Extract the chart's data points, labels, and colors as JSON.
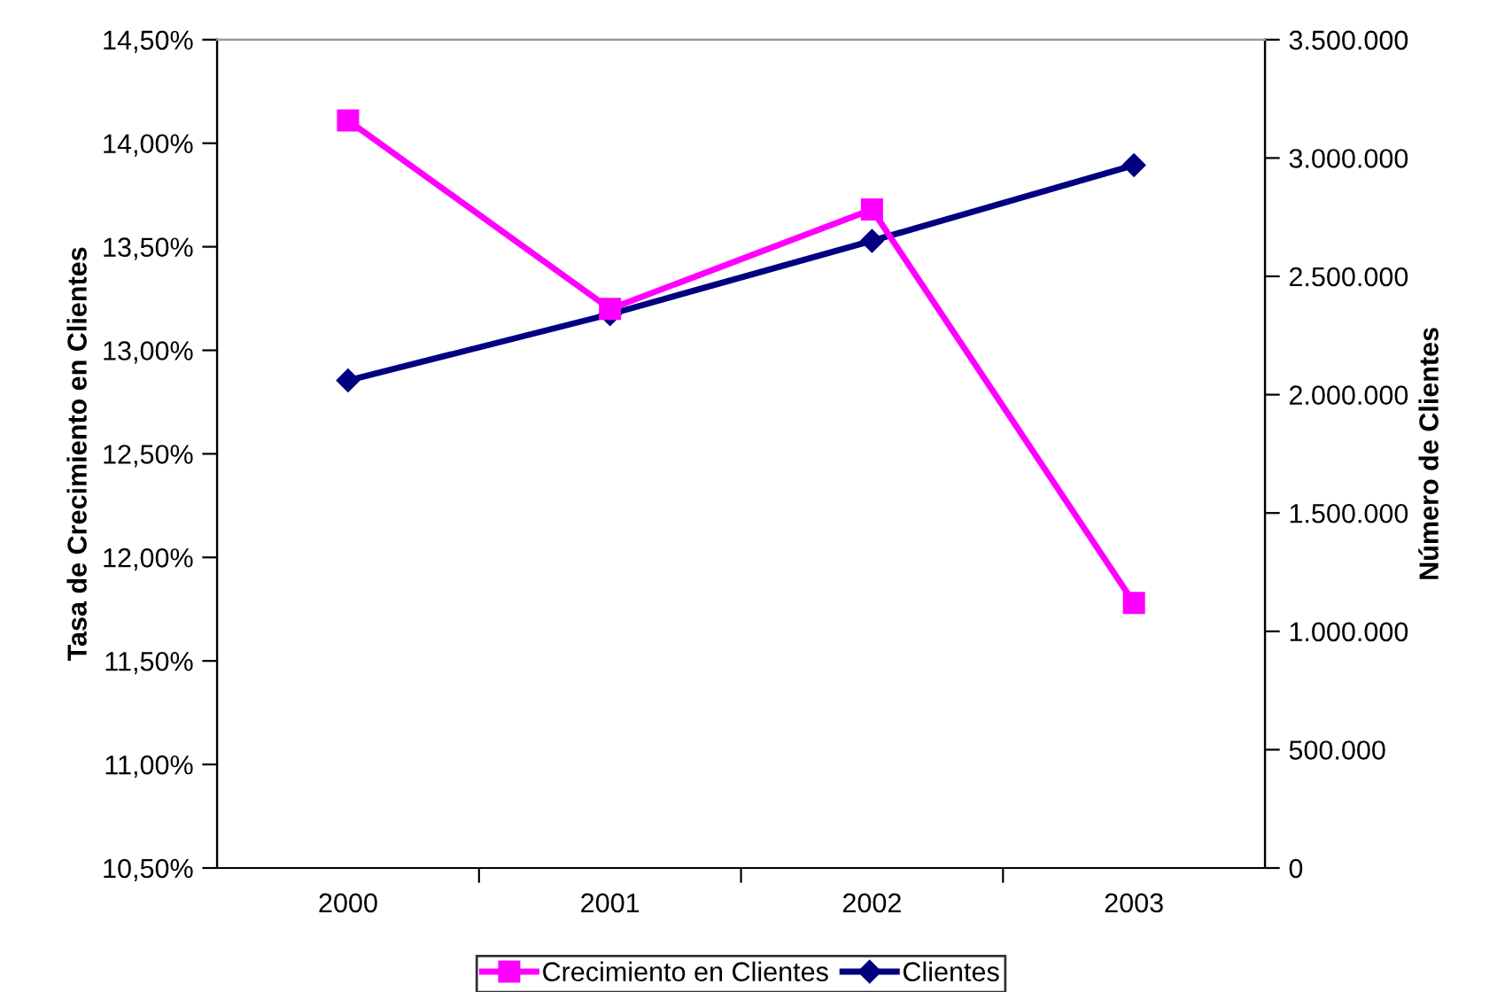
{
  "chart_data": {
    "type": "line",
    "categories": [
      "2000",
      "2001",
      "2002",
      "2003"
    ],
    "ylabel": "Tasa de Crecimiento en Clientes",
    "y2label": "Número de Clientes",
    "series": [
      {
        "name": "Crecimiento en Clientes",
        "color": "#ff00ff",
        "marker": "square",
        "values": [
          14.11,
          13.2,
          13.68,
          11.78
        ]
      },
      {
        "name": "Clientes",
        "color": "#000080",
        "marker": "diamond",
        "axis": "y2",
        "values": [
          2060000,
          2340000,
          2650000,
          2970000
        ]
      }
    ],
    "ylim": [
      10.5,
      14.5
    ],
    "yticks": [
      {
        "value": 10.5,
        "label": "10,50%"
      },
      {
        "value": 11.0,
        "label": "11,00%"
      },
      {
        "value": 11.5,
        "label": "11,50%"
      },
      {
        "value": 12.0,
        "label": "12,00%"
      },
      {
        "value": 12.5,
        "label": "12,50%"
      },
      {
        "value": 13.0,
        "label": "13,00%"
      },
      {
        "value": 13.5,
        "label": "13,50%"
      },
      {
        "value": 14.0,
        "label": "14,00%"
      },
      {
        "value": 14.5,
        "label": "14,50%"
      }
    ],
    "y2lim": [
      0,
      3500000
    ],
    "y2ticks": [
      0,
      {
        "value": 500000,
        "label": "500.000"
      },
      {
        "value": 1000000,
        "label": "1.000.000"
      },
      {
        "value": 1500000,
        "label": "1.500.000"
      },
      {
        "value": 2000000,
        "label": "2.000.000"
      },
      {
        "value": 2500000,
        "label": "2.500.000"
      },
      {
        "value": 3000000,
        "label": "3.000.000"
      },
      {
        "value": 3500000,
        "label": "3.500.000"
      }
    ],
    "legend": "bottom",
    "grid": false,
    "line_style": "solid"
  }
}
